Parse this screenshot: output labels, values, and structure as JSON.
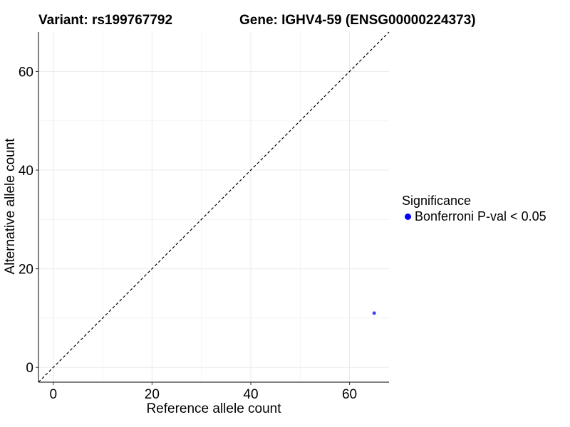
{
  "titles": {
    "variant": "Variant: rs199767792",
    "gene": "Gene: IGHV4-59 (ENSG00000224373)"
  },
  "chart_data": {
    "type": "scatter",
    "xlabel": "Reference allele count",
    "ylabel": "Alternative allele count",
    "xlim": [
      -3,
      68
    ],
    "ylim": [
      -3,
      68
    ],
    "x_ticks": [
      0,
      20,
      40,
      60
    ],
    "y_ticks": [
      0,
      20,
      40,
      60
    ],
    "grid": true,
    "reference_line": {
      "type": "identity",
      "style": "dashed"
    },
    "series": [
      {
        "name": "Bonferroni P-val < 0.05",
        "color": "#0000ff",
        "points": [
          {
            "x": 65,
            "y": 11
          }
        ]
      }
    ],
    "legend": {
      "title": "Significance",
      "position": "right",
      "entries": [
        {
          "label": "Bonferroni P-val < 0.05",
          "color": "#0000ff"
        }
      ]
    }
  }
}
